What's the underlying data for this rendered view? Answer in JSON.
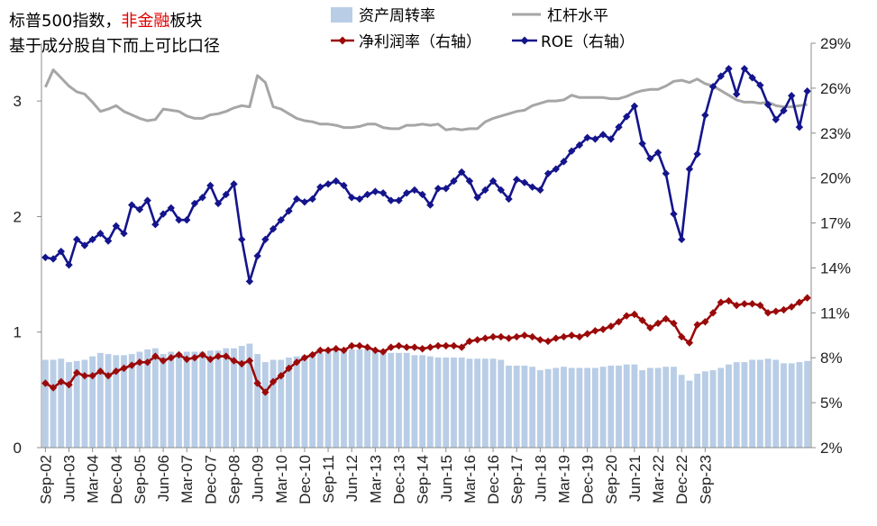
{
  "title": {
    "line1_part1": "标普500指数，",
    "line1_red": "非金融",
    "line1_part2": "板块",
    "line2": "基于成分股自下而上可比口径"
  },
  "colors": {
    "bar": "#b9cde6",
    "leverage": "#a6a6a6",
    "net_margin": "#9b0a0a",
    "roe": "#14148c",
    "title_red": "#e00000"
  },
  "chart_data": {
    "type": "bar+line",
    "title": "标普500指数，非金融板块 基于成分股自下而上可比口径",
    "x_tick_labels": [
      "Sep-02",
      "Jun-03",
      "Mar-04",
      "Dec-04",
      "Sep-05",
      "Jun-06",
      "Mar-07",
      "Dec-07",
      "Sep-08",
      "Jun-09",
      "Mar-10",
      "Dec-10",
      "Sep-11",
      "Jun-12",
      "Mar-13",
      "Dec-13",
      "Sep-14",
      "Jun-15",
      "Mar-16",
      "Dec-16",
      "Sep-17",
      "Jun-18",
      "Mar-19",
      "Dec-19",
      "Sep-20",
      "Jun-21",
      "Mar-22",
      "Dec-22",
      "Sep-23"
    ],
    "left_axis": {
      "ticks": [
        "0",
        "1",
        "2",
        "3"
      ],
      "range": [
        0,
        3.5
      ]
    },
    "right_axis": {
      "ticks": [
        "2%",
        "5%",
        "8%",
        "11%",
        "14%",
        "17%",
        "20%",
        "23%",
        "26%",
        "29%"
      ],
      "range": [
        2,
        29
      ]
    },
    "legend": [
      "资产周转率",
      "杠杆水平",
      "净利润率（右轴）",
      "ROE（右轴）"
    ],
    "series": [
      {
        "name": "资产周转率",
        "type": "bar",
        "axis": "left",
        "values": [
          0.76,
          0.76,
          0.77,
          0.74,
          0.75,
          0.76,
          0.79,
          0.82,
          0.81,
          0.8,
          0.8,
          0.81,
          0.83,
          0.85,
          0.86,
          0.81,
          0.83,
          0.82,
          0.83,
          0.83,
          0.83,
          0.84,
          0.84,
          0.86,
          0.86,
          0.88,
          0.9,
          0.81,
          0.74,
          0.76,
          0.76,
          0.78,
          0.79,
          0.8,
          0.81,
          0.82,
          0.84,
          0.84,
          0.84,
          0.85,
          0.85,
          0.85,
          0.84,
          0.83,
          0.82,
          0.82,
          0.82,
          0.8,
          0.8,
          0.79,
          0.78,
          0.78,
          0.78,
          0.78,
          0.77,
          0.77,
          0.77,
          0.77,
          0.76,
          0.71,
          0.71,
          0.71,
          0.7,
          0.67,
          0.68,
          0.69,
          0.7,
          0.69,
          0.69,
          0.69,
          0.69,
          0.7,
          0.71,
          0.71,
          0.72,
          0.72,
          0.67,
          0.69,
          0.69,
          0.7,
          0.7,
          0.63,
          0.58,
          0.64,
          0.66,
          0.67,
          0.69,
          0.72,
          0.74,
          0.74,
          0.76,
          0.76,
          0.77,
          0.76,
          0.73,
          0.73,
          0.74,
          0.75
        ]
      },
      {
        "name": "杠杆水平",
        "type": "line",
        "axis": "left",
        "values": [
          3.12,
          3.27,
          3.2,
          3.13,
          3.08,
          3.06,
          2.99,
          2.91,
          2.93,
          2.96,
          2.91,
          2.88,
          2.85,
          2.83,
          2.84,
          2.93,
          2.92,
          2.91,
          2.87,
          2.85,
          2.85,
          2.88,
          2.89,
          2.91,
          2.94,
          2.96,
          2.95,
          3.22,
          3.16,
          2.95,
          2.93,
          2.89,
          2.85,
          2.83,
          2.82,
          2.8,
          2.8,
          2.79,
          2.77,
          2.77,
          2.78,
          2.8,
          2.8,
          2.77,
          2.76,
          2.76,
          2.79,
          2.79,
          2.8,
          2.79,
          2.8,
          2.75,
          2.76,
          2.75,
          2.76,
          2.76,
          2.82,
          2.85,
          2.87,
          2.89,
          2.91,
          2.92,
          2.96,
          2.98,
          3.0,
          3.0,
          3.01,
          3.05,
          3.03,
          3.03,
          3.03,
          3.03,
          3.02,
          3.02,
          3.04,
          3.07,
          3.09,
          3.1,
          3.1,
          3.13,
          3.17,
          3.18,
          3.16,
          3.19,
          3.15,
          3.13,
          3.09,
          3.05,
          3.01,
          2.99,
          2.99,
          2.98,
          2.99,
          2.96,
          2.95,
          2.95,
          2.96,
          2.97
        ]
      },
      {
        "name": "净利润率（右轴）",
        "type": "line",
        "axis": "right",
        "values": [
          6.3,
          6.0,
          6.4,
          6.2,
          7.0,
          6.8,
          6.8,
          7.1,
          6.8,
          7.1,
          7.3,
          7.5,
          7.7,
          7.7,
          8.1,
          7.8,
          8.0,
          8.2,
          7.9,
          8.0,
          8.2,
          7.9,
          8.1,
          8.1,
          7.8,
          7.6,
          7.8,
          6.3,
          5.7,
          6.4,
          6.8,
          7.3,
          7.7,
          8.0,
          8.2,
          8.5,
          8.5,
          8.6,
          8.5,
          8.8,
          8.8,
          8.7,
          8.5,
          8.4,
          8.7,
          8.8,
          8.7,
          8.7,
          8.6,
          8.7,
          8.8,
          8.8,
          8.8,
          8.7,
          9.1,
          9.2,
          9.3,
          9.4,
          9.4,
          9.3,
          9.4,
          9.5,
          9.4,
          9.2,
          9.1,
          9.3,
          9.4,
          9.5,
          9.4,
          9.6,
          9.8,
          9.9,
          10.1,
          10.4,
          10.8,
          10.9,
          10.5,
          10.0,
          10.3,
          10.6,
          10.3,
          9.4,
          9.0,
          10.2,
          10.4,
          11.0,
          11.7,
          11.8,
          11.5,
          11.6,
          11.6,
          11.5,
          11.0,
          11.1,
          11.2,
          11.4,
          11.7,
          12.0
        ]
      },
      {
        "name": "ROE（右轴）",
        "type": "line",
        "axis": "right",
        "values": [
          14.7,
          14.6,
          15.1,
          14.2,
          15.9,
          15.5,
          15.9,
          16.3,
          15.8,
          16.8,
          16.3,
          18.2,
          17.9,
          18.5,
          16.9,
          17.6,
          18.0,
          17.2,
          17.2,
          18.3,
          18.7,
          19.5,
          18.3,
          18.9,
          19.6,
          15.9,
          13.1,
          14.8,
          15.9,
          16.6,
          17.2,
          17.8,
          18.6,
          18.4,
          18.6,
          19.4,
          19.6,
          19.8,
          19.5,
          18.7,
          18.6,
          18.9,
          19.1,
          19.0,
          18.5,
          18.5,
          19.0,
          19.2,
          18.9,
          18.2,
          19.3,
          19.3,
          19.8,
          20.4,
          19.8,
          18.7,
          19.2,
          19.8,
          19.2,
          18.6,
          19.9,
          19.7,
          19.4,
          19.2,
          20.3,
          20.6,
          21.1,
          21.8,
          22.2,
          22.7,
          22.6,
          22.9,
          22.6,
          23.4,
          24.1,
          24.8,
          22.3,
          21.3,
          21.7,
          20.3,
          17.6,
          15.9,
          20.6,
          21.6,
          24.2,
          26.1,
          26.8,
          27.3,
          25.6,
          27.3,
          26.7,
          26.2,
          24.9,
          23.9,
          24.5,
          25.5,
          23.4,
          25.8
        ]
      }
    ]
  }
}
